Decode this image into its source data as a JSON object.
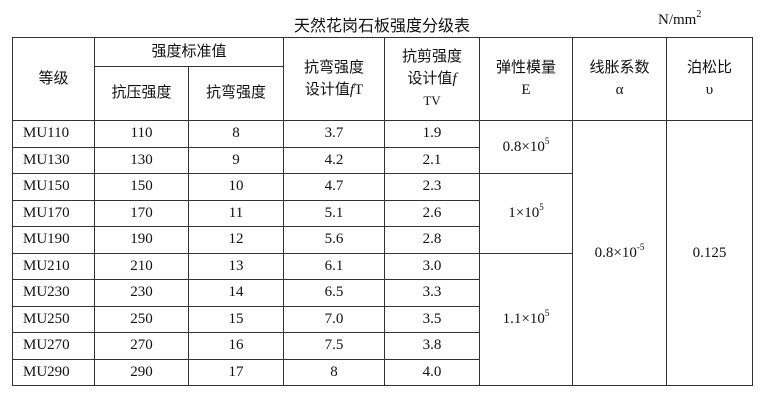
{
  "title": "天然花岗石板强度分级表",
  "unit": {
    "base": "N/mm",
    "exp": "2"
  },
  "headers": {
    "grade": "等级",
    "standard": "强度标准值",
    "compressive": "抗压强度",
    "flexural": "抗弯强度",
    "flex_design_1": "抗弯强度",
    "flex_design_2": "设计值",
    "flex_design_f": "f",
    "flex_design_sub": "T",
    "shear_design_1": "抗剪强度",
    "shear_design_2": "设计值",
    "shear_design_f": "f",
    "shear_design_sub": "TV",
    "elastic": "弹性模量",
    "elastic_sym": "E",
    "expansion": "线胀系数",
    "expansion_sym": "α",
    "poisson": "泊松比",
    "poisson_sym": "υ"
  },
  "rows": [
    {
      "grade": "MU110",
      "compressive": "110",
      "flexural": "8",
      "flex_design": "3.7",
      "shear_design": "1.9"
    },
    {
      "grade": "MU130",
      "compressive": "130",
      "flexural": "9",
      "flex_design": "4.2",
      "shear_design": "2.1"
    },
    {
      "grade": "MU150",
      "compressive": "150",
      "flexural": "10",
      "flex_design": "4.7",
      "shear_design": "2.3"
    },
    {
      "grade": "MU170",
      "compressive": "170",
      "flexural": "11",
      "flex_design": "5.1",
      "shear_design": "2.6"
    },
    {
      "grade": "MU190",
      "compressive": "190",
      "flexural": "12",
      "flex_design": "5.6",
      "shear_design": "2.8"
    },
    {
      "grade": "MU210",
      "compressive": "210",
      "flexural": "13",
      "flex_design": "6.1",
      "shear_design": "3.0"
    },
    {
      "grade": "MU230",
      "compressive": "230",
      "flexural": "14",
      "flex_design": "6.5",
      "shear_design": "3.3"
    },
    {
      "grade": "MU250",
      "compressive": "250",
      "flexural": "15",
      "flex_design": "7.0",
      "shear_design": "3.5"
    },
    {
      "grade": "MU270",
      "compressive": "270",
      "flexural": "16",
      "flex_design": "7.5",
      "shear_design": "3.8"
    },
    {
      "grade": "MU290",
      "compressive": "290",
      "flexural": "17",
      "flex_design": "8",
      "shear_design": "4.0"
    }
  ],
  "elastic_groups": [
    {
      "base": "0.8×10",
      "exp": "5"
    },
    {
      "base": "1×10",
      "exp": "5"
    },
    {
      "base": "1.1×10",
      "exp": "5"
    }
  ],
  "expansion_value": {
    "base": "0.8×10",
    "exp": "-5"
  },
  "poisson_value": "0.125"
}
